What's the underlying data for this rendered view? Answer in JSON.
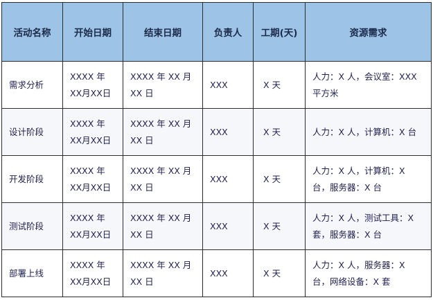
{
  "table": {
    "headers": [
      "活动名称",
      "开始日期",
      "结束日期",
      "负责人",
      "工期(天)",
      "资源需求"
    ],
    "rows": [
      {
        "activity": "需求分析",
        "start": "XXXX 年 XX月XX日",
        "end": "XXXX 年 XX 月 XX 日",
        "owner": "XXX",
        "duration": "X 天",
        "resources": "人力：X 人，会议室：XXX 平方米"
      },
      {
        "activity": "设计阶段",
        "start": "XXXX 年 XX月XX日",
        "end": "XXXX 年 XX 月 XX 日",
        "owner": "XXX",
        "duration": "X 天",
        "resources": "人力：X 人，计算机：X 台"
      },
      {
        "activity": "开发阶段",
        "start": "XXXX 年 XX月XX日",
        "end": "XXXX 年 XX 月 XX 日",
        "owner": "XXX",
        "duration": "X 天",
        "resources": "人力：X 人，计算机：X 台，服务器：X 台"
      },
      {
        "activity": "测试阶段",
        "start": "XXXX 年 XX月XX日",
        "end": "XXXX 年 XX 月 XX 日",
        "owner": "XXX",
        "duration": "X 天",
        "resources": "人力：X 人，测试工具：X 套，服务器：X 台"
      },
      {
        "activity": "部署上线",
        "start": "XXXX 年 XX月XX日",
        "end": "XXXX 年 XX 月 XX 日",
        "owner": "XXX",
        "duration": "X 天",
        "resources": "人力：X 人，服务器：X 台，网络设备：X 套"
      }
    ]
  },
  "colors": {
    "header_bg": "#9dc3e6",
    "alt_row_bg": "#f6f7fb",
    "text": "#1f1f4f"
  }
}
